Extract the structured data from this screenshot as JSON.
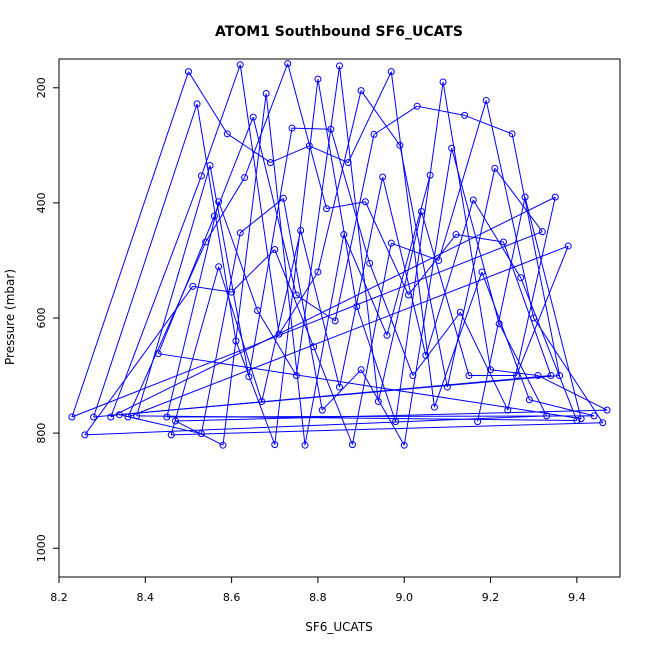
{
  "chart_data": {
    "type": "scatter",
    "style": "points-with-connecting-lines",
    "title": "ATOM1 Southbound SF6_UCATS",
    "xlabel": "SF6_UCATS",
    "ylabel": "Pressure (mbar)",
    "xlim": [
      8.2,
      9.5
    ],
    "ylim": [
      1050,
      150
    ],
    "y_axis_reversed": true,
    "x_ticks": [
      8.2,
      8.4,
      8.6,
      8.8,
      9.0,
      9.2,
      9.4
    ],
    "x_tick_labels": [
      "8.2",
      "8.4",
      "8.6",
      "8.8",
      "9.0",
      "9.2",
      "9.4"
    ],
    "y_ticks": [
      200,
      400,
      600,
      800,
      1000
    ],
    "y_tick_labels": [
      "200",
      "400",
      "600",
      "800",
      "1000"
    ],
    "series_color": "#0000ff",
    "grid": false,
    "legend": "none",
    "series": [
      {
        "points": [
          [
            8.23,
            772
          ],
          [
            8.26,
            803
          ],
          [
            8.28,
            772
          ],
          [
            8.32,
            772
          ],
          [
            8.34,
            768
          ],
          [
            8.36,
            772
          ],
          [
            8.38,
            770
          ],
          [
            8.43,
            662
          ],
          [
            8.45,
            772
          ],
          [
            8.46,
            803
          ],
          [
            8.47,
            779
          ],
          [
            8.5,
            172
          ],
          [
            8.51,
            545
          ],
          [
            8.52,
            228
          ],
          [
            8.53,
            353
          ],
          [
            8.53,
            801
          ],
          [
            8.54,
            468
          ],
          [
            8.55,
            335
          ],
          [
            8.56,
            423
          ],
          [
            8.57,
            398
          ],
          [
            8.57,
            511
          ],
          [
            8.58,
            821
          ],
          [
            8.59,
            280
          ],
          [
            8.6,
            555
          ],
          [
            8.61,
            640
          ],
          [
            8.62,
            160
          ],
          [
            8.62,
            452
          ],
          [
            8.63,
            356
          ],
          [
            8.64,
            702
          ],
          [
            8.65,
            251
          ],
          [
            8.66,
            587
          ],
          [
            8.67,
            745
          ],
          [
            8.68,
            210
          ],
          [
            8.69,
            330
          ],
          [
            8.7,
            481
          ],
          [
            8.7,
            820
          ],
          [
            8.71,
            628
          ],
          [
            8.72,
            392
          ],
          [
            8.73,
            158
          ],
          [
            8.74,
            270
          ],
          [
            8.75,
            560
          ],
          [
            8.75,
            700
          ],
          [
            8.76,
            448
          ],
          [
            8.77,
            821
          ],
          [
            8.78,
            301
          ],
          [
            8.79,
            650
          ],
          [
            8.8,
            185
          ],
          [
            8.8,
            520
          ],
          [
            8.81,
            760
          ],
          [
            8.82,
            410
          ],
          [
            8.83,
            272
          ],
          [
            8.84,
            605
          ],
          [
            8.85,
            162
          ],
          [
            8.85,
            720
          ],
          [
            8.86,
            455
          ],
          [
            8.87,
            330
          ],
          [
            8.88,
            820
          ],
          [
            8.89,
            580
          ],
          [
            8.9,
            205
          ],
          [
            8.9,
            690
          ],
          [
            8.91,
            398
          ],
          [
            8.92,
            505
          ],
          [
            8.93,
            281
          ],
          [
            8.94,
            745
          ],
          [
            8.95,
            355
          ],
          [
            8.96,
            630
          ],
          [
            8.97,
            172
          ],
          [
            8.97,
            470
          ],
          [
            8.98,
            780
          ],
          [
            8.99,
            300
          ],
          [
            9.0,
            821
          ],
          [
            9.01,
            560
          ],
          [
            9.02,
            700
          ],
          [
            9.03,
            232
          ],
          [
            9.04,
            415
          ],
          [
            9.05,
            665
          ],
          [
            9.06,
            352
          ],
          [
            9.07,
            755
          ],
          [
            9.08,
            500
          ],
          [
            9.09,
            190
          ],
          [
            9.1,
            720
          ],
          [
            9.11,
            305
          ],
          [
            9.12,
            455
          ],
          [
            9.13,
            590
          ],
          [
            9.14,
            248
          ],
          [
            9.15,
            700
          ],
          [
            9.16,
            395
          ],
          [
            9.17,
            780
          ],
          [
            9.18,
            520
          ],
          [
            9.19,
            222
          ],
          [
            9.2,
            690
          ],
          [
            9.21,
            340
          ],
          [
            9.22,
            610
          ],
          [
            9.23,
            468
          ],
          [
            9.24,
            760
          ],
          [
            9.25,
            280
          ],
          [
            9.26,
            700
          ],
          [
            9.27,
            530
          ],
          [
            9.28,
            390
          ],
          [
            9.29,
            742
          ],
          [
            9.3,
            600
          ],
          [
            9.31,
            700
          ],
          [
            9.32,
            450
          ],
          [
            9.33,
            770
          ],
          [
            9.34,
            700
          ],
          [
            9.35,
            390
          ],
          [
            9.36,
            700
          ],
          [
            9.38,
            475
          ],
          [
            9.4,
            778
          ],
          [
            9.41,
            775
          ],
          [
            9.44,
            770
          ],
          [
            9.46,
            782
          ],
          [
            9.47,
            760
          ]
        ]
      }
    ]
  }
}
